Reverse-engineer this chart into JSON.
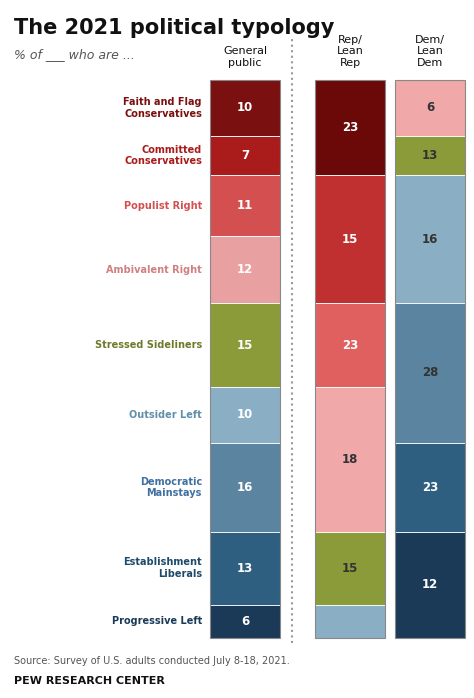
{
  "title": "The 2021 political typology",
  "subtitle": "% of ___ who are ...",
  "groups_labels": [
    "Faith and Flag\nConservatives",
    "Committed\nConservatives",
    "Populist Right",
    "Ambivalent Right",
    "Stressed Sideliners",
    "Outsider Left",
    "Democratic\nMainstays",
    "Establishment\nLiberals",
    "Progressive Left"
  ],
  "group_colors": [
    "#7B1010",
    "#AA1C1C",
    "#D45050",
    "#E8A0A0",
    "#8B9B3A",
    "#8AAFC4",
    "#5B84A0",
    "#2E5F80",
    "#1A3A58"
  ],
  "label_colors": [
    "#7B1010",
    "#AA1C1C",
    "#D45050",
    "#D08080",
    "#6B7B2A",
    "#6090AA",
    "#4070A0",
    "#1E4A6A",
    "#1A3A58"
  ],
  "general_public": [
    10,
    7,
    11,
    12,
    15,
    10,
    16,
    13,
    6
  ],
  "rep_segments": [
    {
      "value": 23,
      "rows": [
        0,
        1
      ],
      "color": "#6B0808",
      "label": "23",
      "txt": "white"
    },
    {
      "value": 15,
      "rows": [
        2,
        3
      ],
      "color": "#C03030",
      "label": "15",
      "txt": "white"
    },
    {
      "value": 23,
      "rows": [
        4
      ],
      "color": "#E06060",
      "label": "23",
      "txt": "white"
    },
    {
      "value": 18,
      "rows": [
        5,
        6
      ],
      "color": "#F0A8A8",
      "label": "18",
      "txt": "#333333"
    },
    {
      "value": 15,
      "rows": [
        7
      ],
      "color": "#8B9B3A",
      "label": "15",
      "txt": "#333333"
    },
    {
      "value": 4,
      "rows": [
        8
      ],
      "color": "#8AAFC4",
      "label": "",
      "txt": "white"
    }
  ],
  "dem_segments": [
    {
      "value": 6,
      "rows": [
        0
      ],
      "color": "#F0A8A8",
      "label": "6",
      "txt": "#333333"
    },
    {
      "value": 13,
      "rows": [
        1
      ],
      "color": "#8B9B3A",
      "label": "13",
      "txt": "#333333"
    },
    {
      "value": 16,
      "rows": [
        2,
        3
      ],
      "color": "#8AAFC4",
      "label": "16",
      "txt": "#333333"
    },
    {
      "value": 28,
      "rows": [
        4,
        5
      ],
      "color": "#5B84A0",
      "label": "28",
      "txt": "#333333"
    },
    {
      "value": 23,
      "rows": [
        6
      ],
      "color": "#2E5F80",
      "label": "23",
      "txt": "white"
    },
    {
      "value": 12,
      "rows": [
        7,
        8
      ],
      "color": "#1A3A58",
      "label": "12",
      "txt": "white"
    }
  ],
  "col_headers": [
    "General\npublic",
    "Rep/\nLean\nRep",
    "Dem/\nLean\nDem"
  ],
  "source": "Source: Survey of U.S. adults conducted July 8-18, 2021.",
  "footer": "PEW RESEARCH CENTER",
  "bg_color": "#FFFFFF"
}
